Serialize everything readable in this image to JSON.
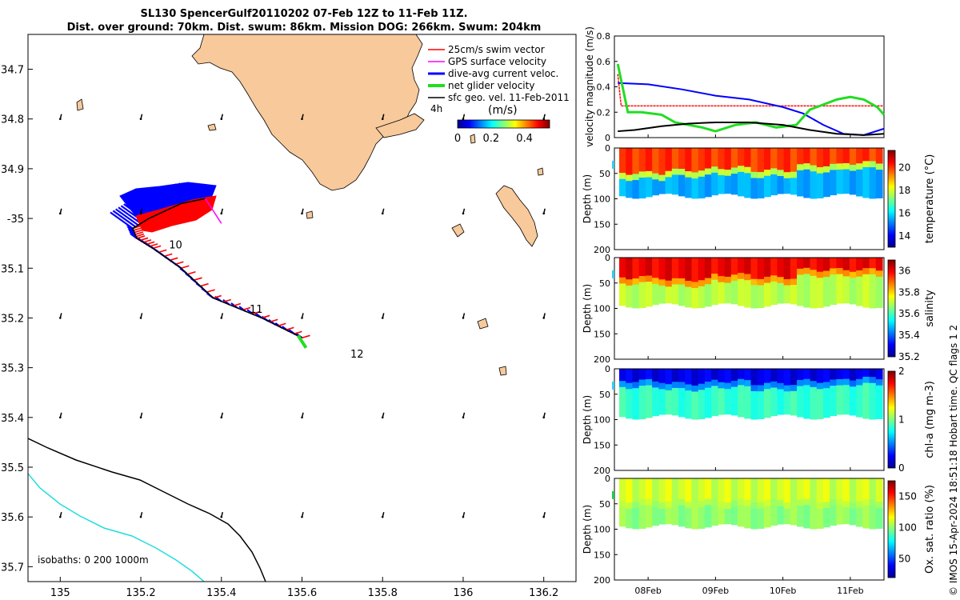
{
  "title_line1": "SL130 SpencerGulf20110202 07-Feb 12Z to 11-Feb 11Z.",
  "title_line2": "Dist. over ground: 70km. Dist. swum: 86km. Mission DOG: 266km. Swum: 204km",
  "credit": "© IMOS 15-Apr-2024 18:51:18 Hobart time. QC flags 1  2",
  "colors": {
    "land": "#f7c99b",
    "swim": "#ff0000",
    "gps": "#ff00ff",
    "dive": "#0000ff",
    "net": "#22dd22",
    "geo": "#000000",
    "iso0": "#000000",
    "iso200": "#000000",
    "iso1000": "#22dddd"
  },
  "chart_data": [
    {
      "type": "map",
      "name": "glider-track-map",
      "xlim": [
        134.92,
        136.28
      ],
      "ylim": [
        -35.73,
        -34.63
      ],
      "xticks": [
        135,
        135.2,
        135.4,
        135.6,
        135.8,
        136,
        136.2
      ],
      "xtick_labels": [
        "135",
        "135.2",
        "135.4",
        "135.6",
        "135.8",
        "136",
        "136.2"
      ],
      "yticks": [
        -34.7,
        -34.8,
        -34.9,
        -35.0,
        -35.1,
        -35.2,
        -35.3,
        -35.4,
        -35.5,
        -35.6,
        -35.7
      ],
      "ytick_labels": [
        "34.7",
        "34.8",
        "34.9",
        "-35",
        "35.1",
        "35.2",
        "35.3",
        "35.4",
        "35.5",
        "35.6",
        "35.7"
      ],
      "legend": {
        "position": "top-right",
        "entries": [
          {
            "label": "25cm/s swim vector",
            "color": "#ff0000"
          },
          {
            "label": "GPS surface velocity",
            "color": "#ff00ff"
          },
          {
            "label": "dive-avg current veloc.",
            "color": "#0000ff"
          },
          {
            "label": "net glider velocity",
            "color": "#22dd22"
          },
          {
            "label": "sfc geo. vel. 11-Feb-2011",
            "color": "#000000"
          }
        ],
        "extra_label": "4h"
      },
      "colorbar": {
        "label": "(m/s)",
        "range": [
          0,
          0.55
        ],
        "ticks": [
          "0",
          "0.2",
          "0.4"
        ]
      },
      "isobath_label": "isobaths: 0   200  1000m",
      "day_labels": [
        {
          "text": "10",
          "lon": 135.27,
          "lat": -35.06
        },
        {
          "text": "11",
          "lon": 135.47,
          "lat": -35.19
        },
        {
          "text": "12",
          "lon": 135.72,
          "lat": -35.28
        }
      ],
      "track": [
        [
          135.6,
          -35.24
        ],
        [
          135.5,
          -35.2
        ],
        [
          135.38,
          -35.16
        ],
        [
          135.3,
          -35.1
        ],
        [
          135.23,
          -35.06
        ],
        [
          135.19,
          -35.04
        ],
        [
          135.18,
          -35.02
        ],
        [
          135.22,
          -35.0
        ],
        [
          135.3,
          -34.97
        ],
        [
          135.36,
          -34.96
        ]
      ],
      "geo_grid_lons": [
        135,
        135.2,
        135.4,
        135.6,
        135.8,
        136,
        136.2
      ],
      "geo_grid_lats": [
        -34.8,
        -34.99,
        -35.2,
        -35.4,
        -35.6
      ]
    },
    {
      "type": "line",
      "name": "velocity-magnitude",
      "ylabel": "velocity magnitude (m/s)",
      "ylim": [
        0,
        0.8
      ],
      "yticks": [
        "0",
        "0.2",
        "0.4",
        "0.6",
        "0.8"
      ],
      "xlim": [
        7.5,
        11.5
      ],
      "series": [
        {
          "name": "swim speed",
          "color": "#ff0000",
          "x": [
            7.55,
            7.6,
            8.0,
            9.0,
            10.0,
            11.0,
            11.5
          ],
          "y": [
            0.5,
            0.25,
            0.25,
            0.25,
            0.25,
            0.25,
            0.25
          ]
        },
        {
          "name": "dive-avg current",
          "color": "#0000ff",
          "x": [
            7.55,
            8.0,
            8.5,
            9.0,
            9.5,
            10.0,
            10.3,
            10.6,
            10.9,
            11.2,
            11.5
          ],
          "y": [
            0.43,
            0.42,
            0.38,
            0.33,
            0.3,
            0.24,
            0.19,
            0.1,
            0.03,
            0.02,
            0.07
          ]
        },
        {
          "name": "net glider velocity",
          "color": "#22dd22",
          "x": [
            7.55,
            7.7,
            7.9,
            8.2,
            8.4,
            8.6,
            8.8,
            9.0,
            9.3,
            9.6,
            9.9,
            10.2,
            10.4,
            10.6,
            10.8,
            11.0,
            11.2,
            11.4,
            11.5
          ],
          "y": [
            0.58,
            0.2,
            0.2,
            0.18,
            0.12,
            0.1,
            0.08,
            0.05,
            0.1,
            0.12,
            0.08,
            0.1,
            0.22,
            0.26,
            0.3,
            0.32,
            0.3,
            0.24,
            0.18
          ]
        },
        {
          "name": "sfc geo. vel.",
          "color": "#000000",
          "x": [
            7.55,
            7.8,
            8.2,
            8.6,
            9.0,
            9.5,
            10.0,
            10.4,
            10.8,
            11.2,
            11.5
          ],
          "y": [
            0.05,
            0.06,
            0.09,
            0.11,
            0.12,
            0.12,
            0.1,
            0.06,
            0.03,
            0.02,
            0.03
          ]
        }
      ]
    },
    {
      "type": "heatmap",
      "name": "temperature-section",
      "ylabel": "Depth (m)",
      "yticks": [
        "0",
        "50",
        "100",
        "150",
        "200"
      ],
      "ylim": [
        0,
        200
      ],
      "colorbar_label": "temperature (°C)",
      "colorbar_ticks": [
        "14",
        "16",
        "18",
        "20"
      ],
      "crange": [
        13,
        21.5
      ],
      "upper_value": 20,
      "lower_value": 15.5,
      "interface_depth": [
        55,
        50,
        45,
        50,
        40,
        35
      ]
    },
    {
      "type": "heatmap",
      "name": "salinity-section",
      "ylabel": "Depth (m)",
      "yticks": [
        "0",
        "50",
        "100",
        "150",
        "200"
      ],
      "ylim": [
        0,
        200
      ],
      "colorbar_label": "salinity",
      "colorbar_ticks": [
        "35.2",
        "35.4",
        "35.6",
        "35.8",
        "36"
      ],
      "crange": [
        35.2,
        36.1
      ],
      "upper_value": 36.0,
      "lower_value": 35.7,
      "interface_depth": [
        45,
        50,
        40,
        45,
        30,
        30
      ]
    },
    {
      "type": "heatmap",
      "name": "chl-a-section",
      "ylabel": "Depth (m)",
      "yticks": [
        "0",
        "50",
        "100",
        "150",
        "200"
      ],
      "ylim": [
        0,
        200
      ],
      "colorbar_label": "chl-a (mg m-3)",
      "colorbar_ticks": [
        "0",
        "1",
        "2"
      ],
      "crange": [
        0,
        2
      ],
      "upper_value": 0.2,
      "lower_value": 0.85,
      "interface_depth": [
        30,
        35,
        30,
        35,
        30,
        25
      ]
    },
    {
      "type": "heatmap",
      "name": "oxygen-section",
      "ylabel": "Depth (m)",
      "yticks": [
        "0",
        "50",
        "100",
        "150",
        "200"
      ],
      "ylim": [
        0,
        200
      ],
      "colorbar_label": "Ox. sat. ratio (%)",
      "colorbar_ticks": [
        "50",
        "100",
        "150"
      ],
      "crange": [
        20,
        175
      ],
      "upper_value": 110,
      "lower_value": 100,
      "interface_depth": [
        50,
        50,
        50,
        50,
        50,
        50
      ]
    }
  ],
  "time_axis": {
    "xlim": [
      7.5,
      11.5
    ],
    "ticks": [
      8,
      9,
      10,
      11
    ],
    "tick_labels": [
      "08Feb",
      "09Feb",
      "10Feb",
      "11Feb"
    ]
  }
}
